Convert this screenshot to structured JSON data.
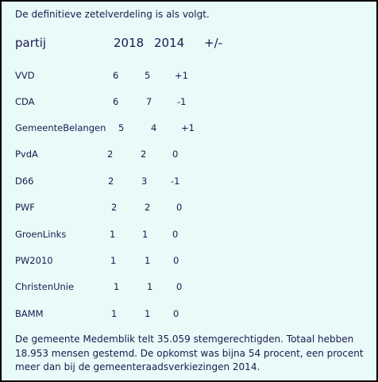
{
  "intro": "De definitieve zetelverdeling is als volgt.",
  "header": {
    "party": "partij",
    "y2018": "2018",
    "y2014": "2014",
    "diff": "+/-"
  },
  "rows": [
    {
      "party": "VVD",
      "y2018": "6",
      "y2014": "5",
      "diff": "+1"
    },
    {
      "party": "CDA",
      "y2018": "6",
      "y2014": "7",
      "diff": "-1"
    },
    {
      "party": "GemeenteBelangen",
      "y2018": "5",
      "y2014": "4",
      "diff": "+1"
    },
    {
      "party": "PvdA",
      "y2018": "2",
      "y2014": "2",
      "diff": "0"
    },
    {
      "party": "D66",
      "y2018": "2",
      "y2014": "3",
      "diff": "-1"
    },
    {
      "party": "PWF",
      "y2018": "2",
      "y2014": "2",
      "diff": "0"
    },
    {
      "party": "GroenLinks",
      "y2018": "1",
      "y2014": "1",
      "diff": "0"
    },
    {
      "party": "PW2010",
      "y2018": "1",
      "y2014": "1",
      "diff": "0"
    },
    {
      "party": "ChristenUnie",
      "y2018": "1",
      "y2014": "1",
      "diff": "0"
    },
    {
      "party": "BAMM",
      "y2018": "1",
      "y2014": "1",
      "diff": "0"
    }
  ],
  "footer": "De gemeente Medemblik telt 35.059 stemgerechtigden. Totaal hebben 18.953 mensen gestemd. De opkomst was bijna 54 procent, een procent meer dan bij de gemeenteraadsverkiezingen 2014."
}
